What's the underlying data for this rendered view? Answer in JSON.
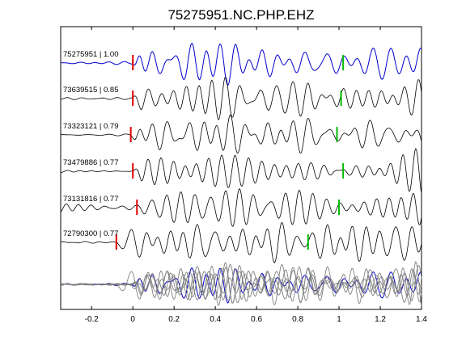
{
  "chart_data": {
    "type": "line",
    "title": "75275951.NC.PHP.EHZ",
    "xlabel": "",
    "ylabel": "",
    "xlim": [
      -0.35,
      1.4
    ],
    "x_ticks": [
      "-0.2",
      "0",
      "0.2",
      "0.4",
      "0.6",
      "0.8",
      "1",
      "1.2",
      "1.4"
    ],
    "x_tick_values": [
      -0.2,
      0,
      0.2,
      0.4,
      0.6,
      0.8,
      1.0,
      1.2,
      1.4
    ],
    "grid": false,
    "colors": {
      "reference": "#0000cc",
      "trace": "#000000",
      "overlay_other": "#808080",
      "p_pick": "#dd0000",
      "s_pick": "#00bb00"
    },
    "series": [
      {
        "name": "75275951 | 1.00",
        "event_id": "75275951",
        "correlation": "1.00",
        "p_pick": 0.0,
        "s_pick": 1.02
      },
      {
        "name": "73639515 | 0.85",
        "event_id": "73639515",
        "correlation": "0.85",
        "p_pick": 0.0,
        "s_pick": 1.01
      },
      {
        "name": "73323121 | 0.79",
        "event_id": "73323121",
        "correlation": "0.79",
        "p_pick": -0.01,
        "s_pick": 0.99
      },
      {
        "name": "73479886 | 0.77",
        "event_id": "73479886",
        "correlation": "0.77",
        "p_pick": 0.0,
        "s_pick": 1.02
      },
      {
        "name": "73131816 | 0.77",
        "event_id": "73131816",
        "correlation": "0.77",
        "p_pick": 0.02,
        "s_pick": 1.0
      },
      {
        "name": "72790300 | 0.77",
        "event_id": "72790300",
        "correlation": "0.77",
        "p_pick": -0.08,
        "s_pick": 0.85
      }
    ],
    "overlay": {
      "legend": false
    }
  }
}
